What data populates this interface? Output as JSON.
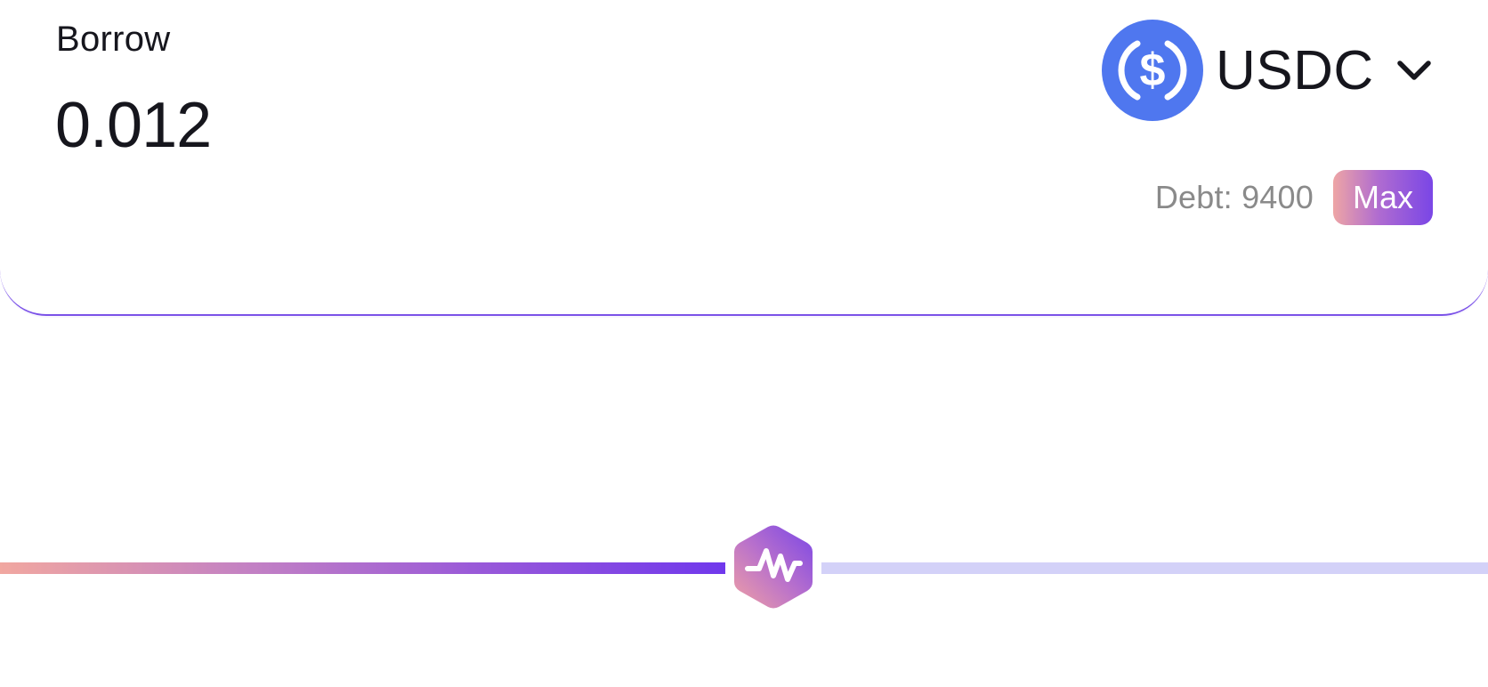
{
  "borrow": {
    "label": "Borrow",
    "amount": "0.012",
    "token": {
      "symbol": "USDC",
      "icon": "usdc-icon",
      "icon_color": "#4f77ef"
    },
    "debt_text": "Debt: 9400",
    "max_label": "Max"
  },
  "slider": {
    "value_fraction": 0.52,
    "filled_gradient": [
      "#f1a7a0",
      "#7038ec"
    ],
    "empty_color": "#d3d1f8",
    "thumb_icon": "pulse-logo-icon"
  },
  "colors": {
    "accent": "#7b52e8",
    "text_primary": "#16161d",
    "text_muted": "#8a8a8a"
  }
}
